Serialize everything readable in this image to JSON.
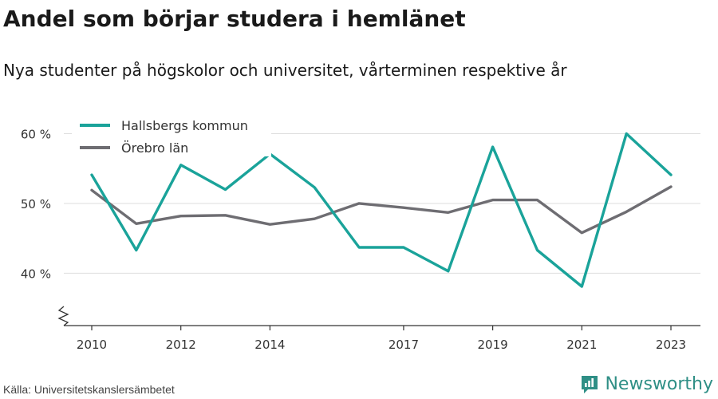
{
  "header": {
    "title": "Andel som börjar studera i hemlänet",
    "subtitle": "Nya studenter på högskolor och universitet, vårterminen respektive år"
  },
  "footer": {
    "source": "Källa: Universitetskanslersämbetet",
    "brand": "Newsworthy",
    "brand_icon": "bar-chart-logo-icon"
  },
  "colors": {
    "hallsberg": "#1aa39a",
    "orebro": "#6e6d72",
    "grid": "#dedede",
    "axis": "#333333",
    "brand": "#2f8f86"
  },
  "chart_data": {
    "type": "line",
    "x": [
      2010,
      2011,
      2012,
      2013,
      2014,
      2015,
      2016,
      2017,
      2018,
      2019,
      2020,
      2021,
      2022,
      2023
    ],
    "x_tick_labels": [
      "2010",
      "2012",
      "2014",
      "2017",
      "2019",
      "2021",
      "2023"
    ],
    "x_tick_values": [
      2010,
      2012,
      2014,
      2017,
      2019,
      2021,
      2023
    ],
    "y_ticks": [
      40,
      50,
      60
    ],
    "y_tick_labels": [
      "40 %",
      "50 %",
      "60 %"
    ],
    "ylim": [
      32.5,
      62
    ],
    "grid": true,
    "legend_position": "top-left",
    "axis_break": true,
    "series": [
      {
        "name": "Hallsbergs kommun",
        "color": "#1aa39a",
        "values": [
          54.1,
          43.3,
          55.5,
          52.0,
          57.1,
          52.3,
          43.7,
          43.7,
          40.3,
          58.1,
          43.3,
          38.1,
          60.0,
          54.1
        ]
      },
      {
        "name": "Örebro län",
        "color": "#6e6d72",
        "values": [
          51.9,
          47.1,
          48.2,
          48.3,
          47.0,
          47.8,
          50.0,
          49.4,
          48.7,
          50.5,
          50.5,
          45.8,
          48.8,
          52.4
        ]
      }
    ]
  }
}
